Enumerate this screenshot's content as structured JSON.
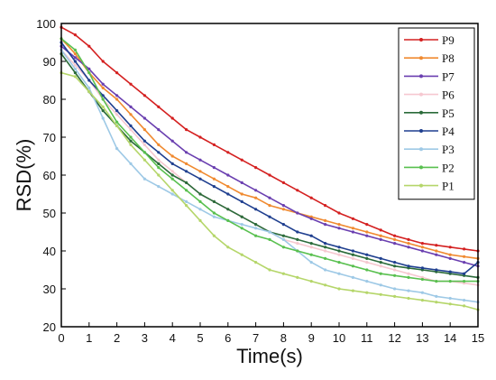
{
  "chart_data": {
    "type": "line",
    "title": "",
    "xlabel": "Time(s)",
    "ylabel": "RSD(%)",
    "xlim": [
      0,
      15
    ],
    "ylim": [
      20,
      100
    ],
    "x_ticks": [
      "0",
      "1",
      "2",
      "3",
      "4",
      "5",
      "6",
      "7",
      "8",
      "9",
      "10",
      "11",
      "12",
      "13",
      "14",
      "15"
    ],
    "y_ticks": [
      "20",
      "30",
      "40",
      "50",
      "60",
      "70",
      "80",
      "90",
      "100"
    ],
    "grid": false,
    "legend_position": "top-right",
    "x": [
      0,
      0.5,
      1,
      1.5,
      2,
      2.5,
      3,
      3.5,
      4,
      4.5,
      5,
      5.5,
      6,
      6.5,
      7,
      7.5,
      8,
      8.5,
      9,
      9.5,
      10,
      10.5,
      11,
      11.5,
      12,
      12.5,
      13,
      13.5,
      14,
      14.5,
      15
    ],
    "series": [
      {
        "name": "P9",
        "color": "#d42020",
        "values": [
          99,
          97,
          94,
          90,
          87,
          84,
          81,
          78,
          75,
          72,
          70,
          68,
          66,
          64,
          62,
          60,
          58,
          56,
          54,
          52,
          50,
          48.5,
          47,
          45.5,
          44,
          43,
          42,
          41.5,
          41,
          40.5,
          40
        ]
      },
      {
        "name": "P8",
        "color": "#f08a30",
        "values": [
          96,
          92,
          87,
          83,
          80,
          76,
          72,
          68,
          65,
          63,
          61,
          59,
          57,
          55,
          54,
          52,
          51,
          50,
          49,
          48,
          47,
          46,
          45,
          44,
          43,
          42,
          41,
          40,
          39,
          38.5,
          38
        ]
      },
      {
        "name": "P7",
        "color": "#6a3fb0",
        "values": [
          94,
          91,
          88,
          84,
          81,
          78,
          75,
          72,
          69,
          66,
          64,
          62,
          60,
          58,
          56,
          54,
          52,
          50,
          48.5,
          47,
          46,
          45,
          44,
          43,
          42,
          41,
          40,
          39,
          38,
          37,
          36
        ]
      },
      {
        "name": "P6",
        "color": "#f6c8d0",
        "values": [
          93,
          89,
          85,
          80,
          76,
          72,
          68,
          64,
          61,
          58,
          55,
          53,
          51,
          49,
          47,
          45,
          43,
          42,
          41,
          40,
          39,
          38,
          37,
          36,
          35,
          34,
          33,
          32,
          32,
          31.5,
          31
        ]
      },
      {
        "name": "P5",
        "color": "#2b6b3a",
        "values": [
          92,
          87,
          82,
          77,
          73,
          69,
          66,
          63,
          60,
          58,
          55,
          53,
          51,
          49,
          47,
          45,
          44,
          43,
          42,
          41,
          40,
          39,
          38,
          37,
          36,
          35.5,
          35,
          34.5,
          34,
          33.5,
          33
        ]
      },
      {
        "name": "P4",
        "color": "#1f3f8f",
        "values": [
          95,
          90,
          85,
          81,
          77,
          73,
          69,
          66,
          63,
          61,
          59,
          57,
          55,
          53,
          51,
          49,
          47,
          45,
          44,
          42,
          41,
          40,
          39,
          38,
          37,
          36,
          35.5,
          35,
          34.5,
          34,
          37
        ]
      },
      {
        "name": "P3",
        "color": "#9ec9e6",
        "values": [
          93,
          88,
          83,
          75,
          67,
          63,
          59,
          57,
          55,
          53,
          51,
          49,
          48,
          47,
          46,
          45,
          43,
          40,
          37,
          35,
          34,
          33,
          32,
          31,
          30,
          29.5,
          29,
          28,
          27.5,
          27,
          26.5
        ]
      },
      {
        "name": "P2",
        "color": "#59c04f",
        "values": [
          96,
          93,
          87,
          80,
          74,
          70,
          66,
          62,
          59,
          56,
          53,
          50,
          48,
          46,
          44,
          43,
          41,
          40,
          39,
          38,
          37,
          36,
          35,
          34,
          33.5,
          33,
          32.5,
          32,
          32,
          32,
          32
        ]
      },
      {
        "name": "P1",
        "color": "#b5d66a",
        "values": [
          87,
          86,
          82,
          78,
          73,
          68,
          64,
          60,
          56,
          52,
          48,
          44,
          41,
          39,
          37,
          35,
          34,
          33,
          32,
          31,
          30,
          29.5,
          29,
          28.5,
          28,
          27.5,
          27,
          26.5,
          26,
          25.5,
          24.5
        ]
      }
    ]
  }
}
